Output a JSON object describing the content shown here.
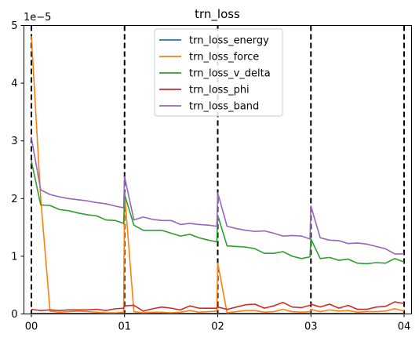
{
  "chart_data": {
    "type": "line",
    "title": "trn_loss",
    "xlabel": "",
    "ylabel": "",
    "y_scale_label": "1e−5",
    "xlim": [
      -0.08,
      4.08
    ],
    "ylim": [
      0,
      5e-05
    ],
    "x_ticks": [
      0,
      1,
      2,
      3,
      4
    ],
    "x_tick_labels": [
      "00",
      "01",
      "02",
      "03",
      "04"
    ],
    "y_ticks": [
      0,
      1e-05,
      2e-05,
      3e-05,
      4e-05,
      5e-05
    ],
    "y_tick_labels": [
      "0",
      "1",
      "2",
      "3",
      "4",
      "5"
    ],
    "vlines": [
      0,
      1,
      2,
      3,
      4
    ],
    "legend_position": "top-center",
    "x": [
      0,
      0.1,
      0.2,
      0.3,
      0.4,
      0.5,
      0.6,
      0.7,
      0.8,
      0.9,
      0.99,
      1.0,
      1.1,
      1.2,
      1.3,
      1.4,
      1.5,
      1.6,
      1.7,
      1.8,
      1.9,
      1.99,
      2.0,
      2.1,
      2.2,
      2.3,
      2.4,
      2.5,
      2.6,
      2.7,
      2.8,
      2.9,
      2.99,
      3.0,
      3.1,
      3.2,
      3.3,
      3.4,
      3.5,
      3.6,
      3.7,
      3.8,
      3.9,
      4.0
    ],
    "series": [
      {
        "name": "trn_loss_energy",
        "color": "#1f77b4",
        "values": [
          1e-07,
          1e-07,
          1e-07,
          1e-07,
          1e-07,
          1e-07,
          1e-07,
          1e-07,
          1e-07,
          1e-07,
          1e-07,
          1e-07,
          1e-07,
          1e-07,
          1e-07,
          1e-07,
          1e-07,
          1e-07,
          1e-07,
          1e-07,
          1e-07,
          1e-07,
          1e-07,
          1e-07,
          1e-07,
          1e-07,
          1e-07,
          1e-07,
          1e-07,
          1e-07,
          1e-07,
          1e-07,
          1e-07,
          1e-07,
          1e-07,
          1e-07,
          1e-07,
          1e-07,
          1e-07,
          1e-07,
          1e-07,
          1e-07,
          1e-07,
          1e-07
        ]
      },
      {
        "name": "trn_loss_force",
        "color": "#ff7f0e",
        "values": [
          4.82e-05,
          2e-05,
          5e-07,
          3e-07,
          4e-07,
          5e-07,
          4e-07,
          3e-07,
          2e-07,
          2e-07,
          3e-07,
          2.1e-05,
          4e-07,
          2e-07,
          3e-07,
          3e-07,
          2e-07,
          3e-07,
          6e-07,
          3e-07,
          4e-07,
          5e-07,
          8.8e-06,
          2e-07,
          4e-07,
          6e-07,
          6e-07,
          3e-07,
          4e-07,
          8e-07,
          4e-07,
          3e-07,
          4e-07,
          8e-07,
          4e-07,
          7e-07,
          5e-07,
          6e-07,
          3e-07,
          4e-07,
          4e-07,
          5e-07,
          9e-07,
          5e-07
        ]
      },
      {
        "name": "trn_loss_v_delta",
        "color": "#2ca02c",
        "values": [
          2.65e-05,
          1.89e-05,
          1.88e-05,
          1.81e-05,
          1.79e-05,
          1.75e-05,
          1.72e-05,
          1.7e-05,
          1.63e-05,
          1.62e-05,
          1.57e-05,
          2.07e-05,
          1.54e-05,
          1.45e-05,
          1.45e-05,
          1.45e-05,
          1.4e-05,
          1.35e-05,
          1.38e-05,
          1.32e-05,
          1.28e-05,
          1.25e-05,
          1.71e-05,
          1.18e-05,
          1.17e-05,
          1.16e-05,
          1.13e-05,
          1.05e-05,
          1.05e-05,
          1.08e-05,
          1e-05,
          9.6e-06,
          9.9e-06,
          1.3e-05,
          9.6e-06,
          9.8e-06,
          9.3e-06,
          9.5e-06,
          8.8e-06,
          8.7e-06,
          8.9e-06,
          8.8e-06,
          9.6e-06,
          9e-06
        ]
      },
      {
        "name": "trn_loss_phi",
        "color": "#d62728",
        "values": [
          8e-07,
          6e-07,
          7e-07,
          6e-07,
          7e-07,
          7e-07,
          7e-07,
          8e-07,
          6e-07,
          9e-07,
          1e-06,
          1.4e-06,
          1.5e-06,
          5e-07,
          9e-07,
          1.2e-06,
          1e-06,
          7e-07,
          1.4e-06,
          1e-06,
          1e-06,
          1e-06,
          1.2e-06,
          8e-07,
          1.2e-06,
          1.6e-06,
          1.7e-06,
          1e-06,
          1.4e-06,
          2e-06,
          1.2e-06,
          1.1e-06,
          1.5e-06,
          1.7e-06,
          1.2e-06,
          1.7e-06,
          1e-06,
          1.5e-06,
          8e-07,
          8e-07,
          1.2e-06,
          1.3e-06,
          2.1e-06,
          1.8e-06
        ]
      },
      {
        "name": "trn_loss_band",
        "color": "#9467bd",
        "values": [
          3.05e-05,
          2.15e-05,
          2.07e-05,
          2.03e-05,
          2e-05,
          1.98e-05,
          1.96e-05,
          1.93e-05,
          1.91e-05,
          1.87e-05,
          1.84e-05,
          2.38e-05,
          1.63e-05,
          1.68e-05,
          1.64e-05,
          1.62e-05,
          1.62e-05,
          1.55e-05,
          1.57e-05,
          1.55e-05,
          1.54e-05,
          1.52e-05,
          2.1e-05,
          1.52e-05,
          1.48e-05,
          1.45e-05,
          1.43e-05,
          1.44e-05,
          1.4e-05,
          1.35e-05,
          1.36e-05,
          1.35e-05,
          1.3e-05,
          1.87e-05,
          1.32e-05,
          1.28e-05,
          1.27e-05,
          1.22e-05,
          1.23e-05,
          1.21e-05,
          1.17e-05,
          1.13e-05,
          1.04e-05,
          1.04e-05
        ]
      }
    ]
  }
}
